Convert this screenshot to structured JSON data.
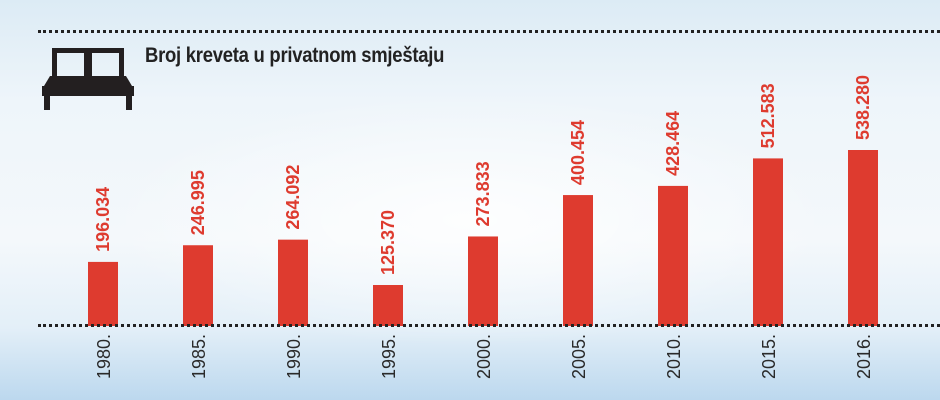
{
  "chart_data": {
    "type": "bar",
    "title": "Broj kreveta u privatnom smještaju",
    "categories": [
      "1980.",
      "1985.",
      "1990.",
      "1995.",
      "2000.",
      "2005.",
      "2010.",
      "2015.",
      "2016."
    ],
    "values": [
      196034,
      246995,
      264092,
      125370,
      273833,
      400454,
      428464,
      512583,
      538280
    ],
    "value_labels": [
      "196.034",
      "246.995",
      "264.092",
      "125.370",
      "273.833",
      "400.454",
      "428.464",
      "512.583",
      "538.280"
    ],
    "xlabel": "",
    "ylabel": "",
    "ylim": [
      0,
      540000
    ],
    "grid": false,
    "bar_color": "#de3b2f",
    "icon": "bed-icon"
  }
}
